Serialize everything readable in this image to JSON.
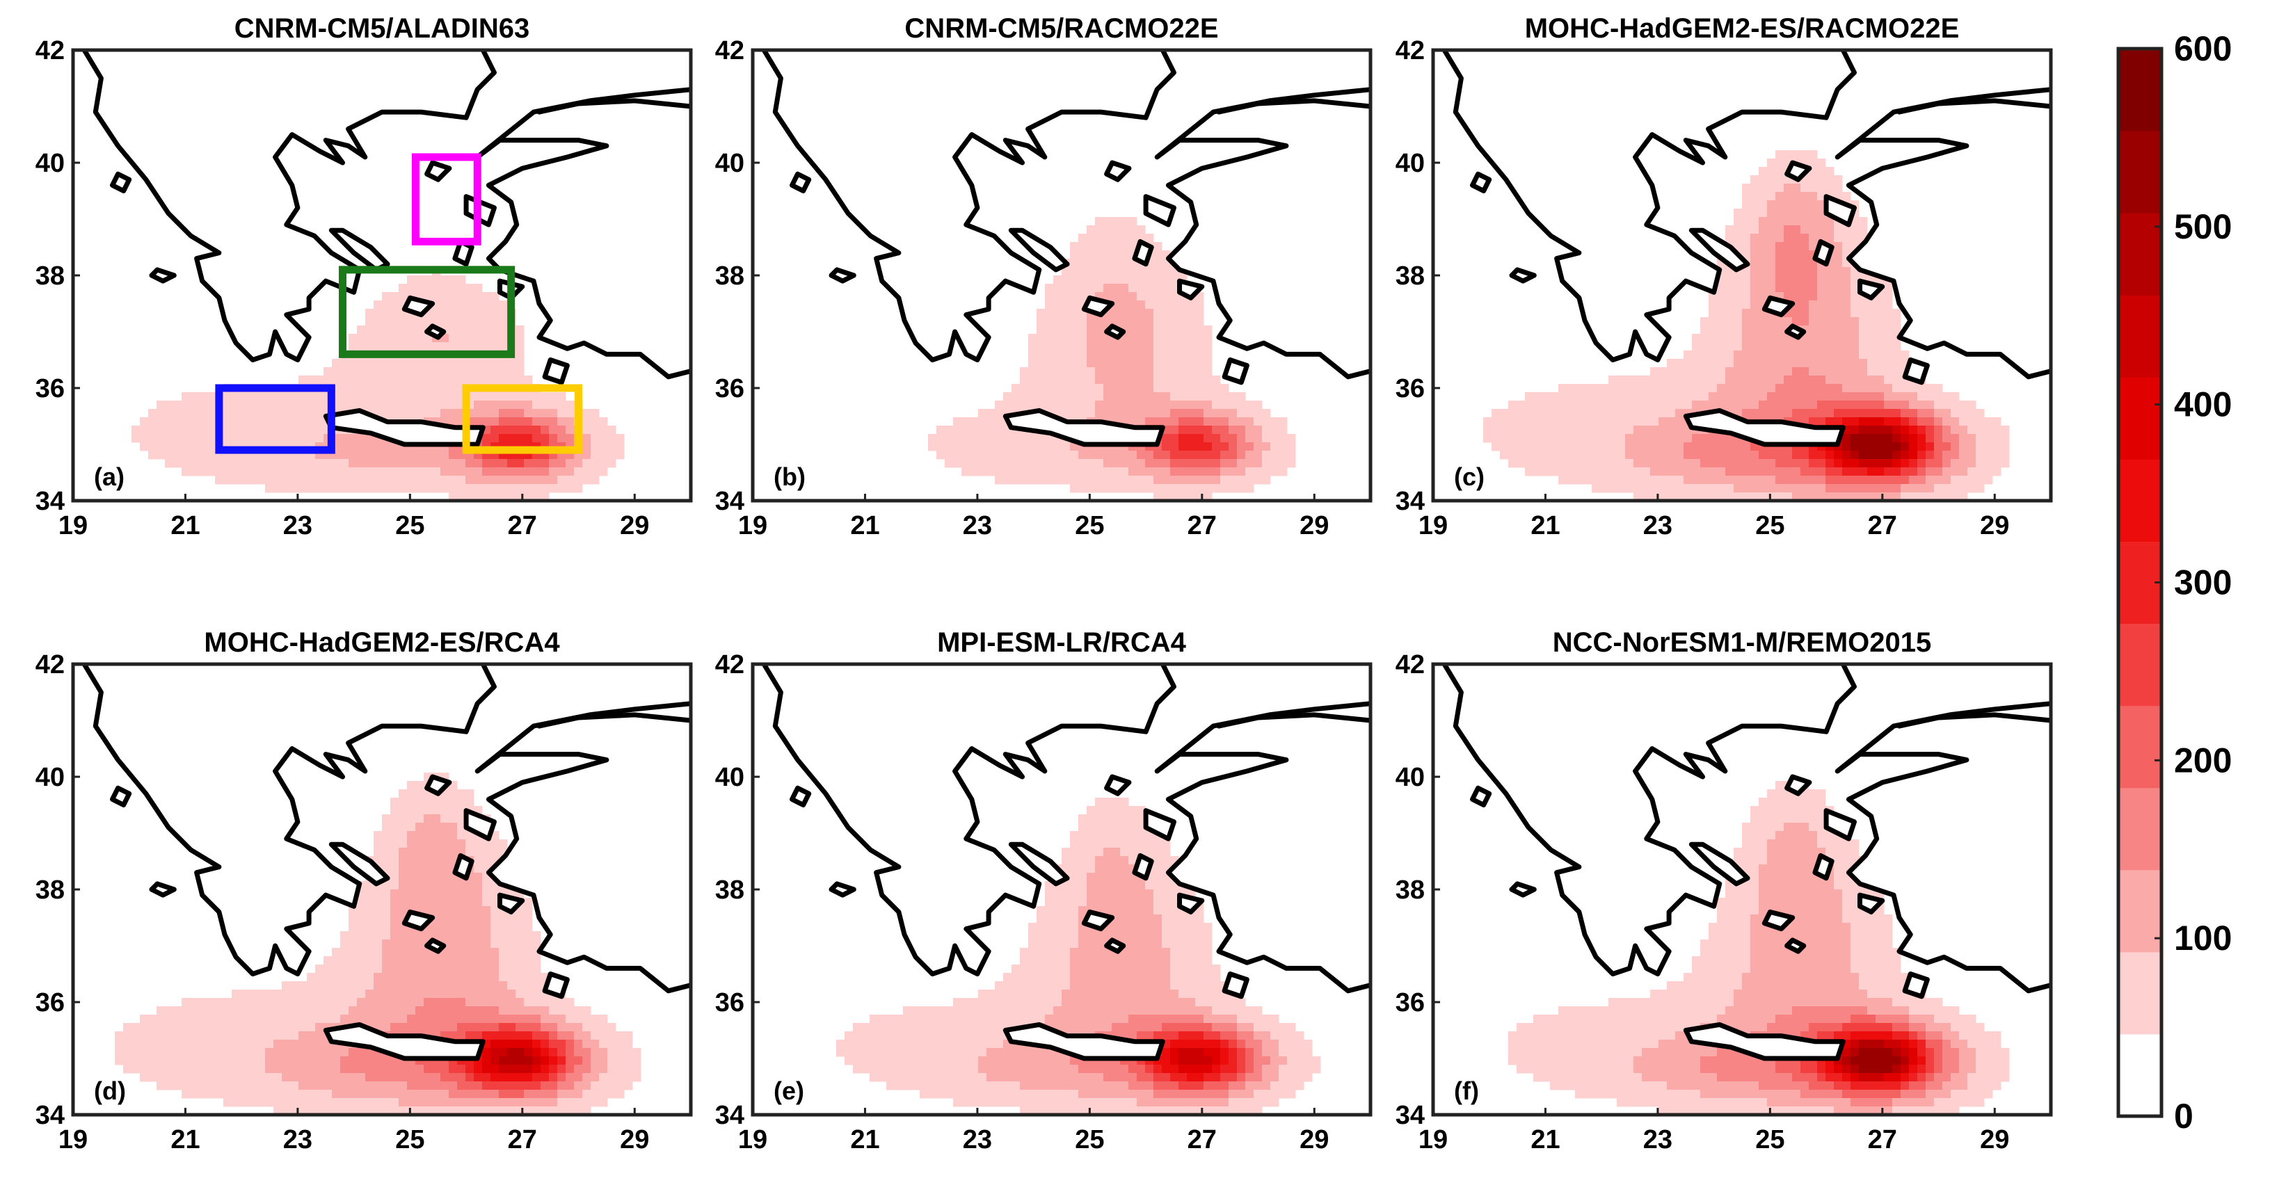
{
  "panels": [
    {
      "id": "a",
      "title": "CNRM-CM5/ALADIN63",
      "label": "(a)",
      "intensity": 0.55,
      "north_spread": 0.35,
      "west_spread": 0.85,
      "boxes": [
        {
          "color": "#ff00ff"
        },
        {
          "color": "#1a7a1a"
        },
        {
          "color": "#1010ff"
        },
        {
          "color": "#ffcc00"
        }
      ]
    },
    {
      "id": "b",
      "title": "CNRM-CM5/RACMO22E",
      "label": "(b)",
      "intensity": 0.5,
      "north_spread": 0.6,
      "west_spread": 0.5,
      "boxes": []
    },
    {
      "id": "c",
      "title": "MOHC-HadGEM2-ES/RACMO22E",
      "label": "(c)",
      "intensity": 1.0,
      "north_spread": 0.9,
      "west_spread": 0.9,
      "boxes": []
    },
    {
      "id": "d",
      "title": "MOHC-HadGEM2-ES/RCA4",
      "label": "(d)",
      "intensity": 0.8,
      "north_spread": 0.85,
      "west_spread": 0.95,
      "boxes": []
    },
    {
      "id": "e",
      "title": "MPI-ESM-LR/RCA4",
      "label": "(e)",
      "intensity": 0.75,
      "north_spread": 0.7,
      "west_spread": 0.75,
      "boxes": []
    },
    {
      "id": "f",
      "title": "NCC-NorESM1-M/REMO2015",
      "label": "(f)",
      "intensity": 1.0,
      "north_spread": 0.75,
      "west_spread": 0.8,
      "boxes": []
    }
  ],
  "x_ticks": [
    "19",
    "21",
    "23",
    "25",
    "27",
    "29"
  ],
  "y_ticks": [
    "42",
    "40",
    "38",
    "36",
    "34"
  ],
  "colorbar": {
    "ticks": [
      "600",
      "500",
      "400",
      "300",
      "200",
      "100",
      "0"
    ],
    "levels": [
      0,
      50,
      100,
      150,
      200,
      250,
      300,
      350,
      400,
      450,
      500,
      550,
      600
    ],
    "colors": [
      "#ffffff",
      "#ffd0d0",
      "#fbaaaa",
      "#f78585",
      "#f46262",
      "#f24040",
      "#ef2020",
      "#ec0c0c",
      "#e00000",
      "#cc0000",
      "#b40000",
      "#9a0000",
      "#800000"
    ]
  }
}
